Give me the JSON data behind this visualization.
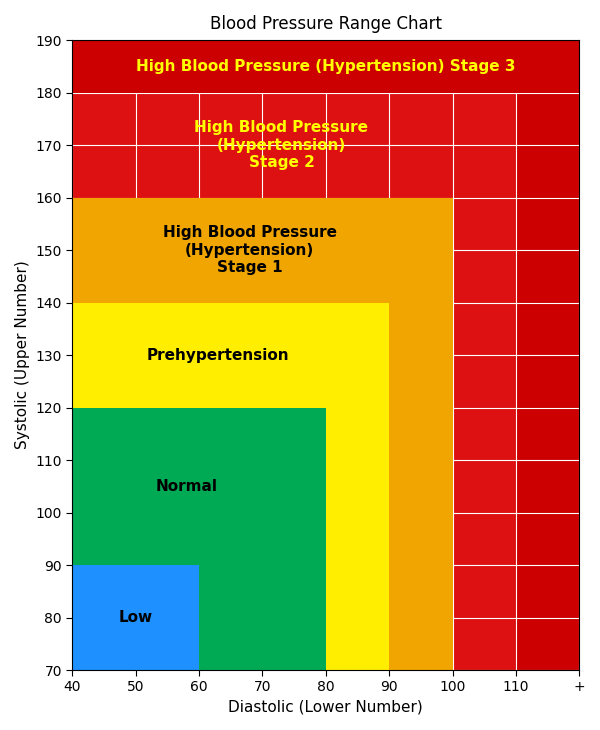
{
  "title": "Blood Pressure Range Chart",
  "xlabel": "Diastolic (Lower Number)",
  "ylabel": "Systolic (Upper Number)",
  "xlim": [
    40,
    120
  ],
  "ylim": [
    70,
    190
  ],
  "xticks": [
    40,
    50,
    60,
    70,
    80,
    90,
    100,
    110,
    120
  ],
  "xtick_labels": [
    "40",
    "50",
    "60",
    "70",
    "80",
    "90",
    "100",
    "110",
    "+"
  ],
  "yticks": [
    70,
    80,
    90,
    100,
    110,
    120,
    130,
    140,
    150,
    160,
    170,
    180,
    190
  ],
  "background_color": "#ffffff",
  "color_stage3": "#cc0000",
  "color_stage2": "#dd1111",
  "color_stage1": "#f0a500",
  "color_prehyp": "#ffee00",
  "color_normal": "#00aa55",
  "color_low": "#1e90ff",
  "title_fontsize": 12,
  "axis_label_fontsize": 11,
  "label_fontsize": 11
}
